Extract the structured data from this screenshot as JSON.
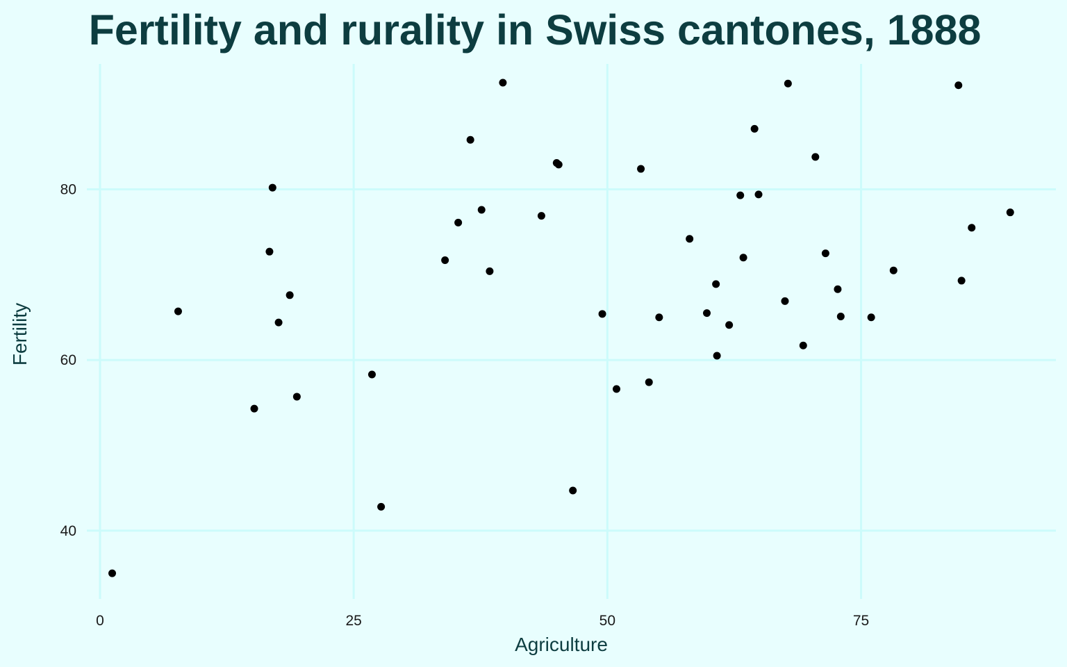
{
  "chart_data": {
    "type": "scatter",
    "title": "Fertility and rurality in Swiss cantones, 1888",
    "xlabel": "Agriculture",
    "ylabel": "Fertility",
    "xlim": [
      -1.3,
      94.2
    ],
    "ylim": [
      32.0,
      94.7
    ],
    "x_ticks": [
      0,
      25,
      50,
      75
    ],
    "y_ticks": [
      40,
      60,
      80
    ],
    "grid": true,
    "colors": {
      "background": "#e8fefe",
      "grid": "#ccfbfb",
      "point": "#000000",
      "title": "#0d3d40"
    },
    "points": [
      {
        "x": 1.2,
        "y": 35.0
      },
      {
        "x": 7.7,
        "y": 65.7
      },
      {
        "x": 15.2,
        "y": 54.3
      },
      {
        "x": 16.7,
        "y": 72.7
      },
      {
        "x": 17.0,
        "y": 80.2
      },
      {
        "x": 17.6,
        "y": 64.4
      },
      {
        "x": 18.7,
        "y": 67.6
      },
      {
        "x": 19.4,
        "y": 55.7
      },
      {
        "x": 26.8,
        "y": 58.3
      },
      {
        "x": 27.7,
        "y": 42.8
      },
      {
        "x": 34.0,
        "y": 71.7
      },
      {
        "x": 35.3,
        "y": 76.1
      },
      {
        "x": 36.5,
        "y": 85.8
      },
      {
        "x": 37.6,
        "y": 77.6
      },
      {
        "x": 38.4,
        "y": 70.4
      },
      {
        "x": 39.7,
        "y": 92.5
      },
      {
        "x": 43.5,
        "y": 76.9
      },
      {
        "x": 45.0,
        "y": 83.1
      },
      {
        "x": 45.2,
        "y": 82.9
      },
      {
        "x": 46.6,
        "y": 44.7
      },
      {
        "x": 49.5,
        "y": 65.4
      },
      {
        "x": 50.9,
        "y": 56.6
      },
      {
        "x": 53.3,
        "y": 82.4
      },
      {
        "x": 54.1,
        "y": 57.4
      },
      {
        "x": 55.1,
        "y": 65.0
      },
      {
        "x": 58.1,
        "y": 74.2
      },
      {
        "x": 59.8,
        "y": 65.5
      },
      {
        "x": 60.7,
        "y": 68.9
      },
      {
        "x": 60.8,
        "y": 60.5
      },
      {
        "x": 62.0,
        "y": 64.1
      },
      {
        "x": 63.1,
        "y": 79.3
      },
      {
        "x": 63.4,
        "y": 72.0
      },
      {
        "x": 64.5,
        "y": 87.1
      },
      {
        "x": 64.9,
        "y": 79.4
      },
      {
        "x": 67.5,
        "y": 66.9
      },
      {
        "x": 67.8,
        "y": 92.4
      },
      {
        "x": 69.3,
        "y": 61.7
      },
      {
        "x": 70.5,
        "y": 83.8
      },
      {
        "x": 71.5,
        "y": 72.5
      },
      {
        "x": 72.7,
        "y": 68.3
      },
      {
        "x": 73.0,
        "y": 65.1
      },
      {
        "x": 76.0,
        "y": 65.0
      },
      {
        "x": 78.2,
        "y": 70.5
      },
      {
        "x": 84.6,
        "y": 92.2
      },
      {
        "x": 84.9,
        "y": 69.3
      },
      {
        "x": 85.9,
        "y": 75.5
      },
      {
        "x": 89.7,
        "y": 77.3
      }
    ]
  }
}
